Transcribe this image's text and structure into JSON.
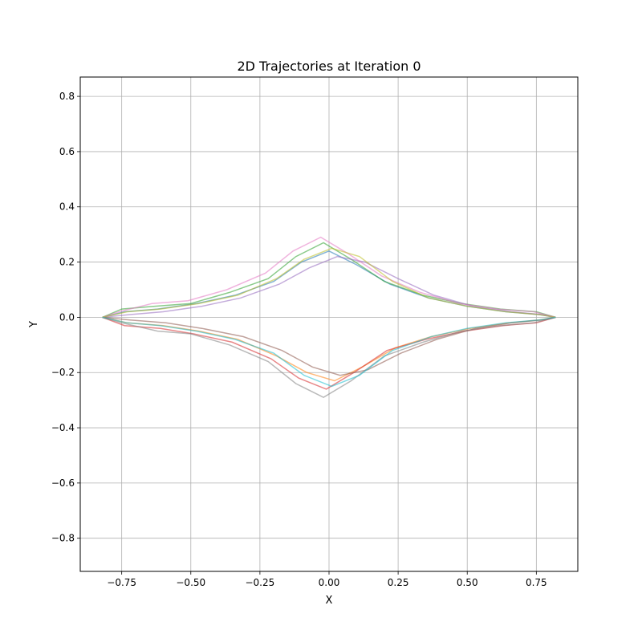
{
  "chart_data": {
    "type": "line",
    "title": "2D Trajectories at Iteration 0",
    "xlabel": "X",
    "ylabel": "Y",
    "xlim": [
      -0.9,
      0.9
    ],
    "ylim": [
      -0.92,
      0.87
    ],
    "xticks": [
      -0.75,
      -0.5,
      -0.25,
      0.0,
      0.25,
      0.5,
      0.75
    ],
    "xtick_labels": [
      "−0.75",
      "−0.50",
      "−0.25",
      "0.00",
      "0.25",
      "0.50",
      "0.75"
    ],
    "yticks": [
      -0.8,
      -0.6,
      -0.4,
      -0.2,
      0.0,
      0.2,
      0.4,
      0.6,
      0.8
    ],
    "ytick_labels": [
      "−0.8",
      "−0.6",
      "−0.4",
      "−0.2",
      "0.0",
      "0.2",
      "0.4",
      "0.6",
      "0.8"
    ],
    "grid": true,
    "legend": "none",
    "line_alpha": 0.55,
    "colors": [
      "#1f77b4",
      "#ff7f0e",
      "#2ca02c",
      "#d62728",
      "#9467bd",
      "#8c564b",
      "#e377c2",
      "#7f7f7f",
      "#bcbd22",
      "#17becf"
    ],
    "series": [
      {
        "x": [
          -0.82,
          -0.74,
          -0.62,
          -0.48,
          -0.34,
          -0.2,
          -0.1,
          0.0,
          0.1,
          0.22,
          0.36,
          0.5,
          0.64,
          0.76,
          0.82
        ],
        "y": [
          0.0,
          0.02,
          0.03,
          0.05,
          0.08,
          0.13,
          0.2,
          0.24,
          0.19,
          0.12,
          0.07,
          0.04,
          0.02,
          0.01,
          0.0
        ]
      },
      {
        "x": [
          -0.82,
          -0.73,
          -0.6,
          -0.47,
          -0.33,
          -0.19,
          -0.08,
          0.02,
          0.12,
          0.24,
          0.37,
          0.51,
          0.65,
          0.76,
          0.82
        ],
        "y": [
          0.0,
          -0.02,
          -0.03,
          -0.05,
          -0.08,
          -0.14,
          -0.2,
          -0.23,
          -0.18,
          -0.11,
          -0.07,
          -0.04,
          -0.02,
          -0.01,
          0.0
        ]
      },
      {
        "x": [
          -0.82,
          -0.75,
          -0.63,
          -0.5,
          -0.36,
          -0.22,
          -0.12,
          -0.02,
          0.08,
          0.2,
          0.34,
          0.48,
          0.62,
          0.75,
          0.82
        ],
        "y": [
          0.0,
          0.03,
          0.04,
          0.05,
          0.09,
          0.14,
          0.22,
          0.27,
          0.21,
          0.13,
          0.08,
          0.05,
          0.03,
          0.02,
          0.0
        ]
      },
      {
        "x": [
          -0.82,
          -0.74,
          -0.61,
          -0.49,
          -0.35,
          -0.21,
          -0.11,
          -0.01,
          0.09,
          0.21,
          0.35,
          0.49,
          0.63,
          0.75,
          0.82
        ],
        "y": [
          0.0,
          -0.03,
          -0.04,
          -0.06,
          -0.09,
          -0.15,
          -0.22,
          -0.26,
          -0.2,
          -0.12,
          -0.08,
          -0.05,
          -0.03,
          -0.02,
          0.0
        ]
      },
      {
        "x": [
          -0.82,
          -0.72,
          -0.6,
          -0.46,
          -0.32,
          -0.18,
          -0.07,
          0.03,
          0.13,
          0.25,
          0.38,
          0.52,
          0.66,
          0.77,
          0.82
        ],
        "y": [
          0.0,
          0.01,
          0.02,
          0.04,
          0.07,
          0.12,
          0.18,
          0.22,
          0.2,
          0.14,
          0.08,
          0.04,
          0.02,
          0.01,
          0.0
        ]
      },
      {
        "x": [
          -0.82,
          -0.72,
          -0.59,
          -0.46,
          -0.31,
          -0.17,
          -0.06,
          0.04,
          0.14,
          0.26,
          0.39,
          0.53,
          0.66,
          0.77,
          0.82
        ],
        "y": [
          0.0,
          -0.01,
          -0.02,
          -0.04,
          -0.07,
          -0.12,
          -0.18,
          -0.21,
          -0.19,
          -0.13,
          -0.08,
          -0.04,
          -0.02,
          -0.01,
          0.0
        ]
      },
      {
        "x": [
          -0.82,
          -0.76,
          -0.64,
          -0.51,
          -0.37,
          -0.23,
          -0.13,
          -0.03,
          0.07,
          0.19,
          0.33,
          0.47,
          0.61,
          0.74,
          0.82
        ],
        "y": [
          0.0,
          0.02,
          0.05,
          0.06,
          0.1,
          0.16,
          0.24,
          0.29,
          0.23,
          0.15,
          0.09,
          0.05,
          0.03,
          0.02,
          0.0
        ]
      },
      {
        "x": [
          -0.82,
          -0.75,
          -0.62,
          -0.5,
          -0.36,
          -0.22,
          -0.12,
          -0.02,
          0.08,
          0.2,
          0.34,
          0.48,
          0.62,
          0.74,
          0.82
        ],
        "y": [
          0.0,
          -0.02,
          -0.05,
          -0.06,
          -0.1,
          -0.16,
          -0.24,
          -0.29,
          -0.23,
          -0.14,
          -0.09,
          -0.05,
          -0.03,
          -0.02,
          0.0
        ]
      },
      {
        "x": [
          -0.82,
          -0.73,
          -0.61,
          -0.47,
          -0.33,
          -0.19,
          -0.09,
          0.01,
          0.11,
          0.23,
          0.36,
          0.5,
          0.64,
          0.76,
          0.82
        ],
        "y": [
          0.0,
          0.02,
          0.03,
          0.05,
          0.08,
          0.14,
          0.21,
          0.25,
          0.22,
          0.13,
          0.07,
          0.04,
          0.02,
          0.01,
          0.0
        ]
      },
      {
        "x": [
          -0.82,
          -0.73,
          -0.61,
          -0.48,
          -0.34,
          -0.2,
          -0.09,
          0.01,
          0.11,
          0.23,
          0.37,
          0.5,
          0.64,
          0.76,
          0.82
        ],
        "y": [
          0.0,
          -0.02,
          -0.03,
          -0.05,
          -0.08,
          -0.13,
          -0.21,
          -0.25,
          -0.21,
          -0.12,
          -0.07,
          -0.04,
          -0.02,
          -0.01,
          0.0
        ]
      }
    ]
  }
}
